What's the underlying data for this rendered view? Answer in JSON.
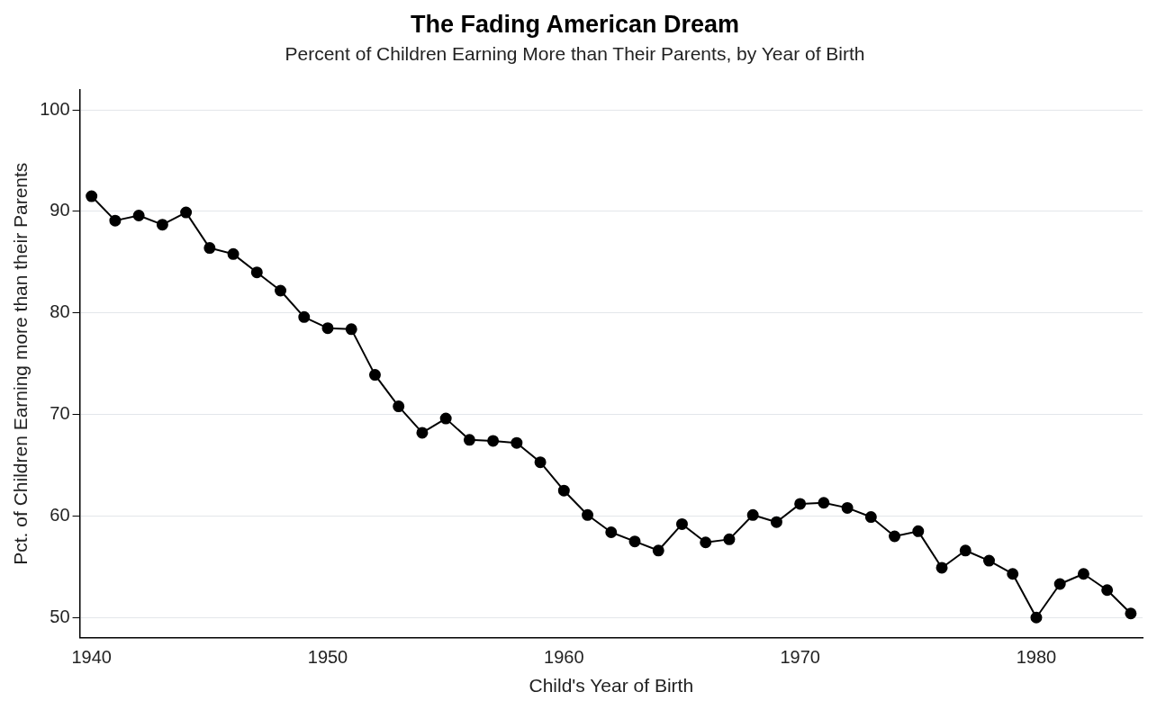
{
  "chart_data": {
    "type": "line",
    "title": "The Fading American Dream",
    "subtitle": "Percent of Children Earning More than Their Parents, by Year of Birth",
    "xlabel": "Child's Year of Birth",
    "ylabel": "Pct. of Children Earning more than their Parents",
    "x": [
      1940,
      1941,
      1942,
      1943,
      1944,
      1945,
      1946,
      1947,
      1948,
      1949,
      1950,
      1951,
      1952,
      1953,
      1954,
      1955,
      1956,
      1957,
      1958,
      1959,
      1960,
      1961,
      1962,
      1963,
      1964,
      1965,
      1966,
      1967,
      1968,
      1969,
      1970,
      1971,
      1972,
      1973,
      1974,
      1975,
      1976,
      1977,
      1978,
      1979,
      1980,
      1981,
      1982,
      1983,
      1984
    ],
    "series": [
      {
        "color": "#000000",
        "values": [
          91.5,
          89.1,
          89.6,
          88.7,
          89.9,
          86.4,
          85.8,
          84.0,
          82.2,
          79.6,
          78.5,
          78.4,
          73.9,
          70.8,
          68.2,
          69.6,
          67.5,
          67.4,
          67.2,
          65.3,
          62.5,
          60.1,
          58.4,
          57.5,
          56.6,
          59.2,
          57.4,
          57.7,
          60.1,
          59.4,
          61.2,
          61.3,
          60.8,
          59.9,
          58.0,
          58.5,
          54.9,
          56.6,
          55.6,
          54.3,
          50.0,
          53.3,
          54.3,
          52.7,
          50.4
        ]
      }
    ],
    "xlim": [
      1939.5,
      1984.5
    ],
    "xticks": [
      1940,
      1950,
      1960,
      1970,
      1980
    ],
    "ylim": [
      48,
      102
    ],
    "yticks": [
      50,
      60,
      70,
      80,
      90,
      100
    ],
    "grid": "y",
    "marker": "circle",
    "line_style": "solid",
    "legend": false
  }
}
